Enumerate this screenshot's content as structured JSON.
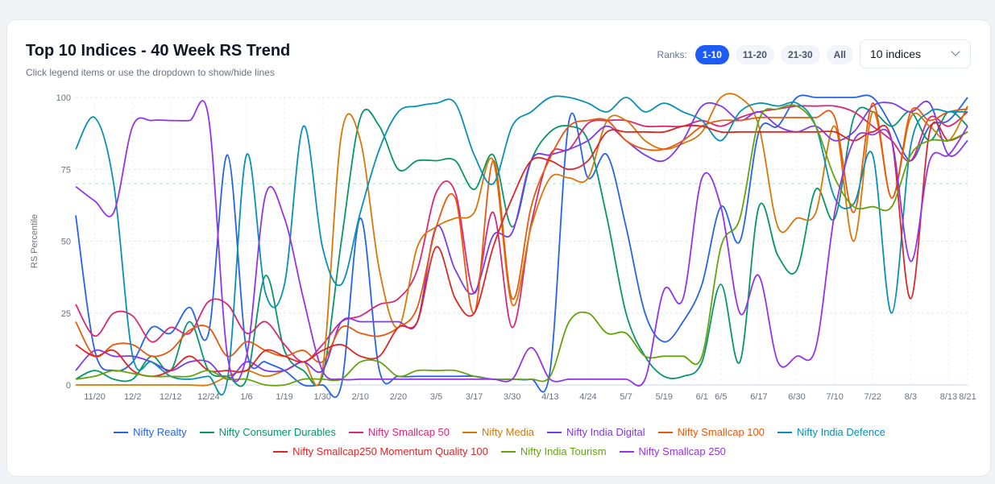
{
  "header": {
    "title": "Top 10 Indices - 40 Week RS Trend",
    "subtitle": "Click legend items or use the dropdown to show/hide lines"
  },
  "ranks": {
    "label": "Ranks:",
    "options": [
      "1-10",
      "11-20",
      "21-30",
      "All"
    ],
    "active": "1-10"
  },
  "dropdown": {
    "value": "10 indices"
  },
  "chart_data": {
    "type": "line",
    "title": "Top 10 Indices - 40 Week RS Trend",
    "xlabel": "",
    "ylabel": "RS Percentile",
    "ylim": [
      0,
      100
    ],
    "yticks": [
      0,
      25,
      50,
      75,
      100
    ],
    "grid": true,
    "reference_line": 70,
    "legend_position": "bottom",
    "x": [
      "11/13",
      "11/20",
      "11/27",
      "12/2",
      "12/6",
      "12/12",
      "12/18",
      "12/24",
      "12/30",
      "1/6",
      "1/12",
      "1/19",
      "1/25",
      "1/30",
      "2/5",
      "2/10",
      "2/14",
      "2/20",
      "2/26",
      "3/5",
      "3/11",
      "3/17",
      "3/24",
      "3/30",
      "4/7",
      "4/13",
      "4/19",
      "4/24",
      "5/1",
      "5/7",
      "5/13",
      "5/19",
      "5/26",
      "6/1",
      "6/5",
      "6/11",
      "6/17",
      "6/24",
      "6/30",
      "7/5",
      "7/10",
      "7/16",
      "7/22",
      "7/28",
      "8/3",
      "8/8",
      "8/13",
      "8/21"
    ],
    "xticks": [
      "11/20",
      "12/2",
      "12/12",
      "12/24",
      "1/6",
      "1/19",
      "1/30",
      "2/10",
      "2/20",
      "3/5",
      "3/17",
      "3/30",
      "4/13",
      "4/24",
      "5/7",
      "5/19",
      "6/1",
      "6/5",
      "6/17",
      "6/30",
      "7/10",
      "7/22",
      "8/3",
      "8/13",
      "8/21"
    ],
    "series": [
      {
        "name": "Nifty Realty",
        "color": "#2563eb",
        "values": [
          59,
          12,
          5,
          8,
          20,
          18,
          27,
          18,
          80,
          12,
          8,
          5,
          0,
          0,
          0,
          58,
          5,
          3,
          3,
          3,
          3,
          3,
          2,
          2,
          2,
          5,
          92,
          72,
          80,
          55,
          25,
          15,
          22,
          35,
          62,
          50,
          88,
          90,
          100,
          100,
          100,
          100,
          100,
          90,
          78,
          90,
          92,
          100
        ]
      },
      {
        "name": "Nifty Consumer Durables",
        "color": "#059669",
        "values": [
          2,
          5,
          2,
          2,
          10,
          5,
          22,
          5,
          3,
          2,
          38,
          12,
          5,
          3,
          50,
          93,
          90,
          75,
          78,
          78,
          78,
          68,
          80,
          55,
          78,
          88,
          90,
          85,
          58,
          25,
          10,
          3,
          3,
          8,
          35,
          8,
          62,
          45,
          40,
          68,
          58,
          93,
          95,
          90,
          95,
          85,
          95,
          90
        ]
      },
      {
        "name": "Nifty Smallcap 50",
        "color": "#db2777",
        "values": [
          28,
          17,
          25,
          24,
          15,
          20,
          18,
          29,
          28,
          18,
          22,
          14,
          8,
          14,
          22,
          24,
          28,
          30,
          40,
          67,
          67,
          32,
          60,
          20,
          56,
          80,
          82,
          91,
          92,
          92,
          90,
          90,
          90,
          92,
          90,
          93,
          95,
          96,
          97,
          97,
          97,
          95,
          90,
          85,
          78,
          93,
          90,
          95
        ]
      },
      {
        "name": "Nifty Media",
        "color": "#d97706",
        "values": [
          0,
          0,
          0,
          0,
          0,
          0,
          0,
          0,
          3,
          5,
          3,
          5,
          8,
          5,
          87,
          85,
          40,
          20,
          48,
          55,
          58,
          60,
          78,
          28,
          55,
          72,
          72,
          72,
          92,
          92,
          85,
          82,
          84,
          88,
          100,
          100,
          90,
          55,
          58,
          60,
          90,
          50,
          95,
          65,
          93,
          90,
          85,
          97
        ]
      },
      {
        "name": "Nifty India Digital",
        "color": "#7c3aed",
        "values": [
          5,
          12,
          10,
          10,
          8,
          5,
          8,
          8,
          2,
          8,
          5,
          5,
          8,
          5,
          22,
          22,
          22,
          22,
          22,
          55,
          40,
          32,
          52,
          53,
          78,
          80,
          82,
          85,
          90,
          85,
          80,
          78,
          85,
          97,
          97,
          92,
          95,
          90,
          88,
          90,
          85,
          88,
          97,
          98,
          95,
          98,
          80,
          85
        ]
      },
      {
        "name": "Nifty Smallcap 100",
        "color": "#ea580c",
        "values": [
          22,
          10,
          14,
          14,
          10,
          12,
          19,
          20,
          10,
          15,
          12,
          10,
          12,
          8,
          20,
          18,
          17,
          20,
          27,
          55,
          65,
          25,
          78,
          30,
          62,
          79,
          90,
          92,
          92,
          85,
          82,
          82,
          85,
          90,
          92,
          92,
          93,
          93,
          93,
          93,
          93,
          60,
          98,
          65,
          95,
          92,
          95,
          96
        ]
      },
      {
        "name": "Nifty India Defence",
        "color": "#0891b2",
        "values": [
          82,
          93,
          70,
          10,
          8,
          3,
          2,
          3,
          2,
          80,
          32,
          35,
          90,
          48,
          35,
          60,
          82,
          95,
          97,
          98,
          98,
          80,
          70,
          90,
          95,
          100,
          100,
          98,
          95,
          100,
          95,
          98,
          95,
          92,
          85,
          95,
          98,
          97,
          98,
          90,
          65,
          63,
          80,
          25,
          83,
          95,
          95,
          95
        ]
      },
      {
        "name": "Nifty Smallcap250 Momentum Quality 100",
        "color": "#dc2626",
        "values": [
          14,
          10,
          12,
          5,
          3,
          5,
          10,
          5,
          5,
          5,
          12,
          10,
          8,
          12,
          14,
          10,
          10,
          20,
          22,
          48,
          30,
          25,
          48,
          65,
          78,
          78,
          75,
          78,
          88,
          88,
          88,
          88,
          90,
          90,
          88,
          88,
          88,
          88,
          88,
          88,
          88,
          85,
          88,
          85,
          30,
          88,
          85,
          88
        ]
      },
      {
        "name": "Nifty India Tourism",
        "color": "#65a30d",
        "values": [
          2,
          3,
          5,
          4,
          3,
          3,
          3,
          5,
          2,
          2,
          0,
          0,
          2,
          2,
          2,
          8,
          8,
          3,
          5,
          5,
          5,
          3,
          2,
          2,
          2,
          3,
          22,
          25,
          18,
          18,
          10,
          10,
          10,
          10,
          48,
          58,
          92,
          96,
          97,
          90,
          72,
          62,
          62,
          62,
          80,
          85,
          85,
          88
        ]
      },
      {
        "name": "Nifty Smallcap 250",
        "color": "#9333ea",
        "values": [
          69,
          64,
          60,
          90,
          92,
          92,
          92,
          93,
          10,
          10,
          66,
          58,
          30,
          5,
          2,
          2,
          2,
          2,
          2,
          2,
          2,
          2,
          2,
          2,
          13,
          2,
          2,
          2,
          2,
          2,
          2,
          33,
          30,
          72,
          62,
          25,
          38,
          8,
          10,
          13,
          60,
          85,
          87,
          85,
          43,
          78,
          80,
          90
        ]
      }
    ]
  }
}
